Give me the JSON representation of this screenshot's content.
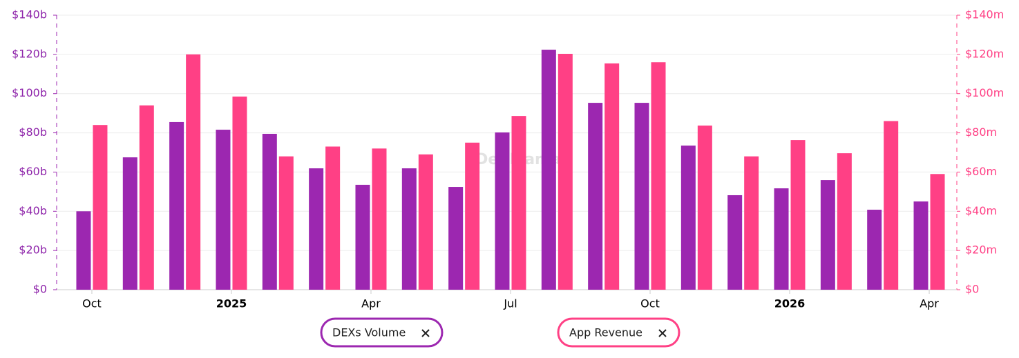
{
  "chart_data": {
    "type": "bar",
    "watermark": "DefiLlama",
    "categories": [
      "Oct",
      null,
      null,
      "2025",
      null,
      null,
      "Apr",
      null,
      null,
      "Jul",
      null,
      null,
      "Oct",
      null,
      null,
      "2026",
      null,
      null,
      "Apr"
    ],
    "series": [
      {
        "name": "DEXs Volume",
        "color": "#9c27b0",
        "axis": "y",
        "values": [
          40,
          67.5,
          85.5,
          81.6,
          79.5,
          61.9,
          53.5,
          61.9,
          52.4,
          80.2,
          122.4,
          95.3,
          95.3,
          73.5,
          48.2,
          51.7,
          55.9,
          40.8,
          45
        ]
      },
      {
        "name": "App Revenue",
        "color": "#ff4085",
        "axis": "y2",
        "values": [
          84,
          94,
          120,
          98.5,
          68,
          73,
          72,
          69,
          75,
          88.6,
          120.3,
          115.4,
          116,
          83.7,
          68,
          76.3,
          69.6,
          86,
          59
        ]
      }
    ],
    "ylim": [
      0,
      140
    ],
    "yticks": [
      {
        "value": 0,
        "label": "$0"
      },
      {
        "value": 20,
        "label": "$20b"
      },
      {
        "value": 40,
        "label": "$40b"
      },
      {
        "value": 60,
        "label": "$60b"
      },
      {
        "value": 80,
        "label": "$80b"
      },
      {
        "value": 100,
        "label": "$100b"
      },
      {
        "value": 120,
        "label": "$120b"
      },
      {
        "value": 140,
        "label": "$140b"
      }
    ],
    "y2lim": [
      0,
      140
    ],
    "y2ticks": [
      {
        "value": 0,
        "label": "$0"
      },
      {
        "value": 20,
        "label": "$20m"
      },
      {
        "value": 40,
        "label": "$40m"
      },
      {
        "value": 60,
        "label": "$60m"
      },
      {
        "value": 80,
        "label": "$80m"
      },
      {
        "value": 100,
        "label": "$100m"
      },
      {
        "value": 120,
        "label": "$120m"
      },
      {
        "value": 140,
        "label": "$140m"
      }
    ],
    "grid": true,
    "legend": "bottom"
  }
}
